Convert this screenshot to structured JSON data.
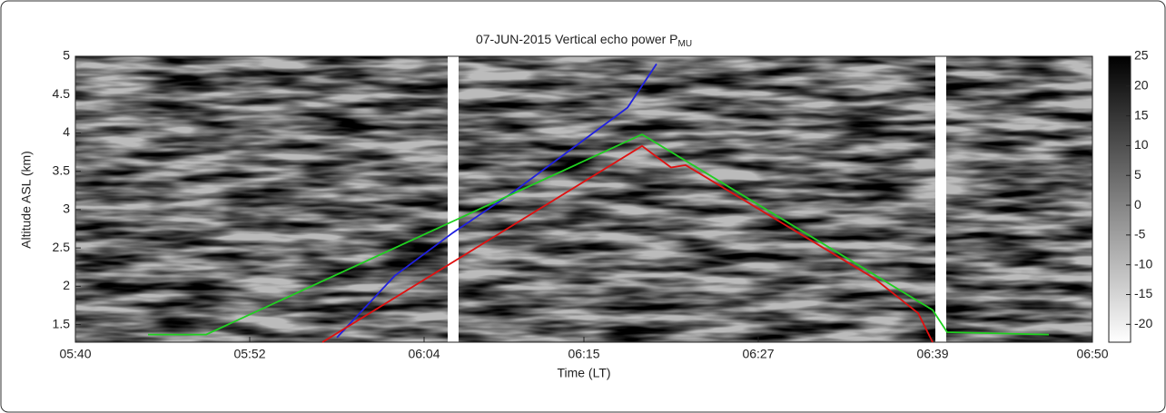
{
  "chart_data": {
    "type": "line",
    "title": "07-JUN-2015 Vertical echo power P",
    "title_subscript": "MU",
    "x_label": "Time (LT)",
    "y_label": "Altitude ASL (km)",
    "xlim": [
      "05:40",
      "06:50"
    ],
    "xticks": [
      "05:40",
      "05:52",
      "06:04",
      "06:15",
      "06:27",
      "06:39",
      "06:50"
    ],
    "ylim": [
      1.27,
      5
    ],
    "yticks": [
      1.5,
      2,
      2.5,
      3,
      3.5,
      4,
      4.5,
      5
    ],
    "clim": [
      -23,
      25
    ],
    "cticks": [
      -20,
      -15,
      -10,
      -5,
      0,
      5,
      10,
      15,
      20,
      25
    ],
    "series": [
      {
        "color": "#1f1fe0",
        "x": [
          "05:58",
          "06:02",
          "06:06",
          "06:10",
          "06:14",
          "06:18",
          "06:20"
        ],
        "values": [
          1.33,
          2.14,
          2.7,
          3.21,
          3.77,
          4.33,
          4.9
        ]
      },
      {
        "color": "#e01010",
        "x": [
          "05:57",
          "06:19",
          "06:21",
          "06:22",
          "06:35",
          "06:38",
          "06:39"
        ],
        "values": [
          1.27,
          3.83,
          3.55,
          3.58,
          2.1,
          1.65,
          1.27
        ]
      },
      {
        "color": "#20d020",
        "x": [
          "05:45",
          "05:49",
          "06:19",
          "06:39",
          "06:40",
          "06:47"
        ],
        "values": [
          1.37,
          1.37,
          3.98,
          1.69,
          1.4,
          1.37
        ]
      }
    ]
  }
}
